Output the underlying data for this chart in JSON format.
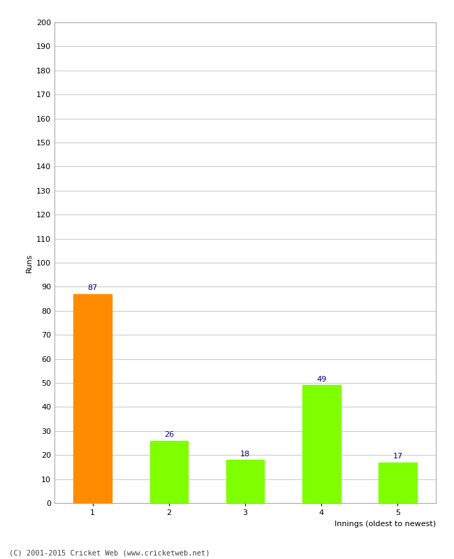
{
  "categories": [
    "1",
    "2",
    "3",
    "4",
    "5"
  ],
  "values": [
    87,
    26,
    18,
    49,
    17
  ],
  "bar_colors": [
    "#FF8C00",
    "#7FFF00",
    "#7FFF00",
    "#7FFF00",
    "#7FFF00"
  ],
  "xlabel": "Innings (oldest to newest)",
  "ylabel": "Runs",
  "ylim": [
    0,
    200
  ],
  "yticks": [
    0,
    10,
    20,
    30,
    40,
    50,
    60,
    70,
    80,
    90,
    100,
    110,
    120,
    130,
    140,
    150,
    160,
    170,
    180,
    190,
    200
  ],
  "label_color": "#00008B",
  "label_fontsize": 8,
  "tick_fontsize": 8,
  "ylabel_fontsize": 8,
  "xlabel_fontsize": 8,
  "footer": "(C) 2001-2015 Cricket Web (www.cricketweb.net)",
  "background_color": "#ffffff",
  "grid_color": "#cccccc",
  "border_color": "#aaaaaa"
}
